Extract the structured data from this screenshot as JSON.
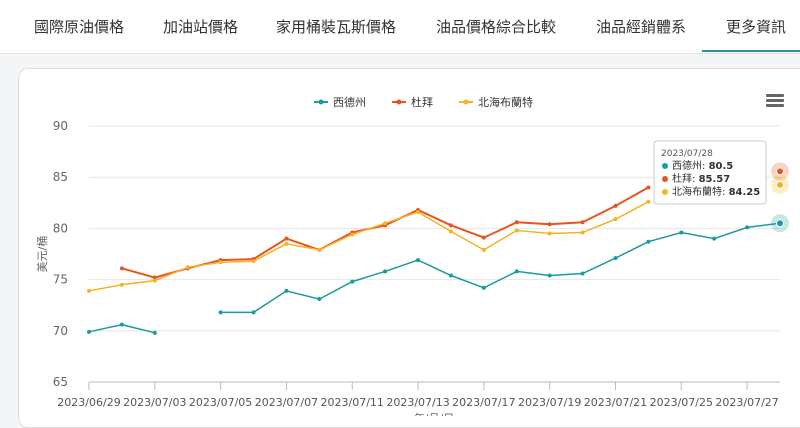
{
  "nav": {
    "items": [
      "國際原油價格",
      "加油站價格",
      "家用桶裝瓦斯價格",
      "油品價格綜合比較",
      "油品經銷體系",
      "更多資訊"
    ]
  },
  "chart_data": {
    "type": "line",
    "ylabel": "美元/桶",
    "xlabel": "年/月/日",
    "ylim": [
      65,
      90
    ],
    "yticks": [
      65,
      70,
      75,
      80,
      85,
      90
    ],
    "grid": true,
    "legend_position": "top-center",
    "x": [
      "2023/06/29",
      "2023/06/30",
      "2023/07/03",
      "2023/07/04",
      "2023/07/05",
      "2023/07/06",
      "2023/07/07",
      "2023/07/10",
      "2023/07/11",
      "2023/07/12",
      "2023/07/13",
      "2023/07/14",
      "2023/07/17",
      "2023/07/18",
      "2023/07/19",
      "2023/07/20",
      "2023/07/21",
      "2023/07/24",
      "2023/07/25",
      "2023/07/26",
      "2023/07/27",
      "2023/07/28"
    ],
    "xtick_labels": [
      "2023/06/29",
      "2023/07/03",
      "2023/07/05",
      "2023/07/07",
      "2023/07/11",
      "2023/07/13",
      "2023/07/17",
      "2023/07/19",
      "2023/07/21",
      "2023/07/25",
      "2023/07/27"
    ],
    "series": [
      {
        "name": "西德州",
        "color": "#1a9ba1",
        "values": [
          69.9,
          70.6,
          69.8,
          null,
          71.8,
          71.8,
          73.9,
          73.1,
          74.8,
          75.8,
          76.9,
          75.4,
          74.2,
          75.8,
          75.4,
          75.6,
          77.1,
          78.7,
          79.6,
          79.0,
          80.1,
          80.5
        ]
      },
      {
        "name": "杜拜",
        "color": "#e8541e",
        "values": [
          null,
          76.1,
          75.2,
          76.1,
          76.9,
          77.0,
          79.0,
          77.9,
          79.6,
          80.3,
          81.8,
          80.3,
          79.1,
          80.6,
          80.4,
          80.6,
          82.2,
          84.0,
          null,
          null,
          null,
          85.57
        ]
      },
      {
        "name": "北海布蘭特",
        "color": "#f5b323",
        "values": [
          73.9,
          74.5,
          74.9,
          76.2,
          76.7,
          76.8,
          78.5,
          77.9,
          79.4,
          80.5,
          81.6,
          79.7,
          77.9,
          79.8,
          79.5,
          79.6,
          80.9,
          82.6,
          null,
          null,
          null,
          84.25
        ]
      }
    ]
  },
  "tooltip": {
    "date": "2023/07/28",
    "rows": [
      {
        "label": "西德州: ",
        "value": "80.5",
        "color": "#1a9ba1"
      },
      {
        "label": "杜拜: ",
        "value": "85.57",
        "color": "#e8541e"
      },
      {
        "label": "北海布蘭特: ",
        "value": "84.25",
        "color": "#f5b323"
      }
    ]
  }
}
